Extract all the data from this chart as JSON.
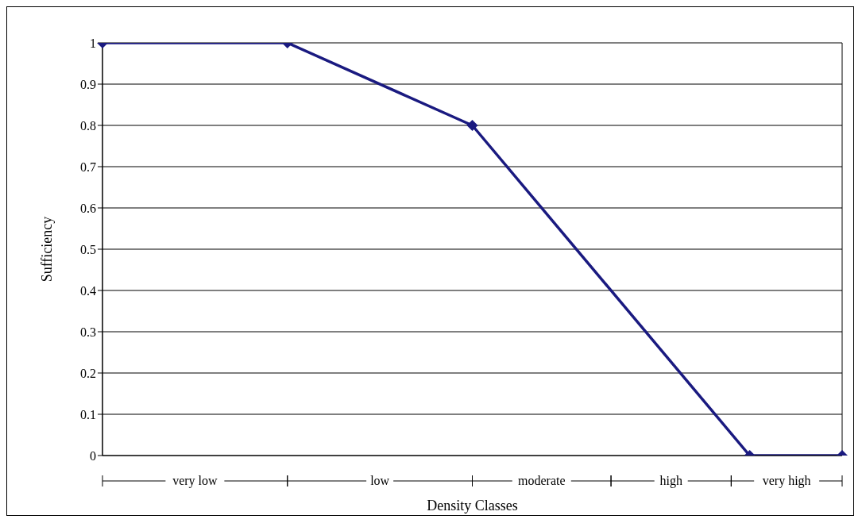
{
  "chart_data": {
    "type": "line",
    "xlabel": "Density Classes",
    "ylabel": "Sufficiency",
    "categories": [
      null,
      null,
      null,
      null,
      null,
      null,
      null,
      null,
      null
    ],
    "series": [
      {
        "color": "#1a1a80",
        "values": [
          1,
          null,
          1,
          null,
          0.8,
          null,
          null,
          0,
          0
        ]
      }
    ],
    "ylim": [
      0,
      1
    ],
    "yticks": [
      0,
      0.1,
      0.2,
      0.3,
      0.4,
      0.5,
      0.6,
      0.7,
      0.8,
      0.9,
      1
    ],
    "annotations": [
      "very low",
      "low",
      "moderate",
      "high",
      "very high"
    ],
    "grid": true,
    "tick_labels": "y",
    "marker": "diamond",
    "line_style": "solid"
  }
}
